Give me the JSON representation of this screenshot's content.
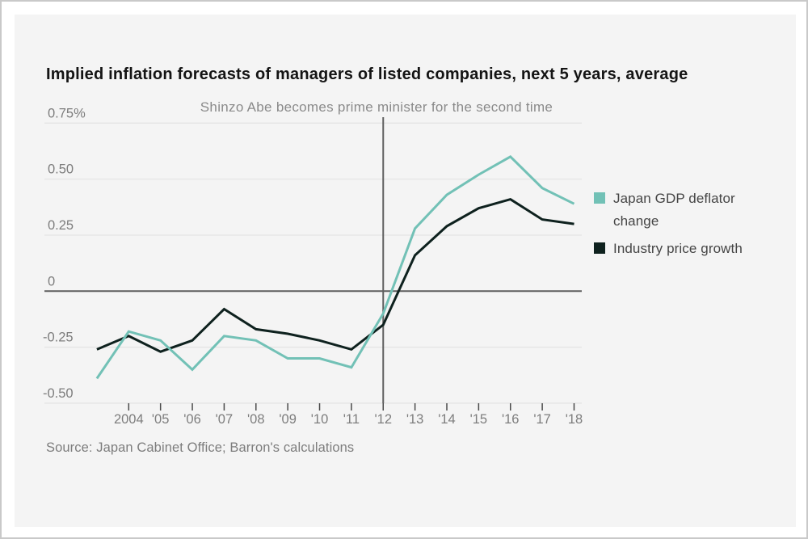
{
  "page": {
    "title": "Implied inflation forecasts of managers of listed companies, next 5 years, average",
    "source": "Source: Japan Cabinet Office; Barron's calculations"
  },
  "legend": {
    "items": [
      {
        "label": "Japan GDP deflator change",
        "color": "#72c1b6"
      },
      {
        "label": "Industry price growth",
        "color": "#0e211e"
      }
    ]
  },
  "colors": {
    "panel_background": "#f4f4f4",
    "frame_border": "#c9c9c9",
    "gridline": "#e4e4e4",
    "zero_line": "#5f5f5f",
    "marker_line": "#5f5f5f",
    "tick": "#4a4a4a",
    "axis_text": "#7d7d7d",
    "annotation_text": "#8a8a8a",
    "title_text": "#141414",
    "series_teal": "#72c1b6",
    "series_dark": "#0e211e"
  },
  "chart_data": {
    "type": "line",
    "title": "Implied inflation forecasts of managers of listed companies, next 5 years, average",
    "xlabel": "",
    "ylabel": "",
    "ylim": [
      -0.5,
      0.75
    ],
    "grid": true,
    "legend_position": "right",
    "x": [
      2003,
      2004,
      2005,
      2006,
      2007,
      2008,
      2009,
      2010,
      2011,
      2012,
      2013,
      2014,
      2015,
      2016,
      2017,
      2018
    ],
    "x_ticks": [
      {
        "year": 2004,
        "label": "2004"
      },
      {
        "year": 2005,
        "label": "'05"
      },
      {
        "year": 2006,
        "label": "'06"
      },
      {
        "year": 2007,
        "label": "'07"
      },
      {
        "year": 2008,
        "label": "'08"
      },
      {
        "year": 2009,
        "label": "'09"
      },
      {
        "year": 2010,
        "label": "'10"
      },
      {
        "year": 2011,
        "label": "'11"
      },
      {
        "year": 2012,
        "label": "'12"
      },
      {
        "year": 2013,
        "label": "'13"
      },
      {
        "year": 2014,
        "label": "'14"
      },
      {
        "year": 2015,
        "label": "'15"
      },
      {
        "year": 2016,
        "label": "'16"
      },
      {
        "year": 2017,
        "label": "'17"
      },
      {
        "year": 2018,
        "label": "'18"
      }
    ],
    "y_ticks": [
      {
        "v": 0.75,
        "label": "0.75%"
      },
      {
        "v": 0.5,
        "label": "0.50"
      },
      {
        "v": 0.25,
        "label": "0.25"
      },
      {
        "v": 0,
        "label": "0"
      },
      {
        "v": -0.25,
        "label": "-0.25"
      },
      {
        "v": -0.5,
        "label": "-0.50"
      }
    ],
    "series": [
      {
        "name": "Japan GDP deflator change",
        "color": "#72c1b6",
        "values": [
          -0.39,
          -0.18,
          -0.22,
          -0.35,
          -0.2,
          -0.22,
          -0.3,
          -0.3,
          -0.34,
          -0.1,
          0.28,
          0.43,
          0.52,
          0.6,
          0.46,
          0.39
        ]
      },
      {
        "name": "Industry price growth",
        "color": "#0e211e",
        "values": [
          -0.26,
          -0.2,
          -0.27,
          -0.22,
          -0.08,
          -0.17,
          -0.19,
          -0.22,
          -0.26,
          -0.15,
          0.16,
          0.29,
          0.37,
          0.41,
          0.32,
          0.3
        ]
      }
    ],
    "marker_line": {
      "x": 2012,
      "label": "Shinzo Abe becomes prime minister for the second time"
    }
  }
}
